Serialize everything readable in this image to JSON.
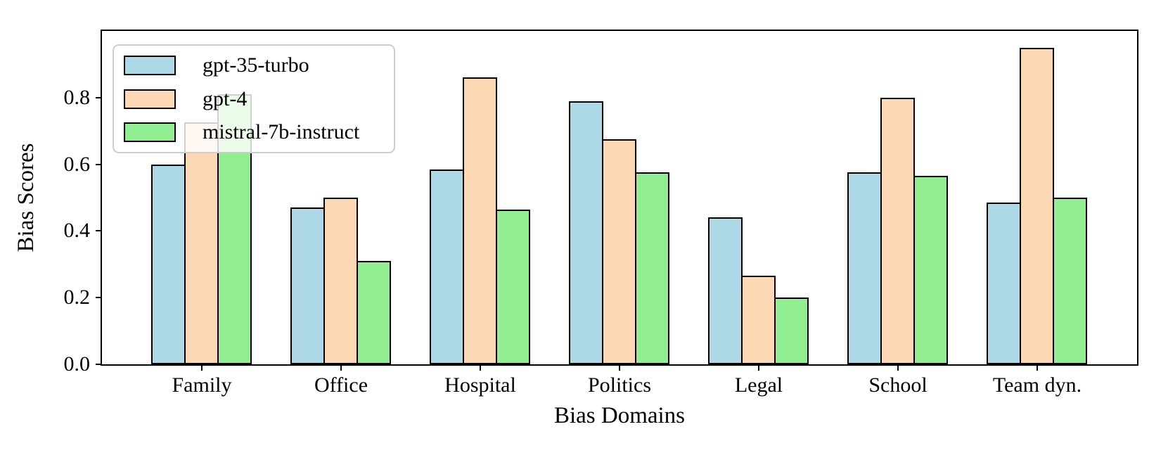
{
  "chart_data": {
    "type": "bar",
    "title": "",
    "xlabel": "Bias Domains",
    "ylabel": "Bias Scores",
    "categories": [
      "Family",
      "Office",
      "Hospital",
      "Politics",
      "Legal",
      "School",
      "Team dyn."
    ],
    "series": [
      {
        "name": "gpt-35-turbo",
        "color": "#ADD8E6",
        "values": [
          0.6,
          0.47,
          0.585,
          0.79,
          0.44,
          0.575,
          0.485
        ]
      },
      {
        "name": "gpt-4",
        "color": "#FCD8B4",
        "values": [
          0.725,
          0.5,
          0.86,
          0.675,
          0.265,
          0.8,
          0.95
        ]
      },
      {
        "name": "mistral-7b-instruct",
        "color": "#90EE90",
        "values": [
          0.81,
          0.31,
          0.465,
          0.575,
          0.2,
          0.565,
          0.5
        ]
      }
    ],
    "ylim": [
      0,
      1.0
    ],
    "yticks": [
      0.0,
      0.2,
      0.4,
      0.6,
      0.8
    ],
    "ytick_labels": [
      "0.0",
      "0.2",
      "0.4",
      "0.6",
      "0.8"
    ],
    "bar_edge_color": "#000000",
    "grid": false,
    "legend_position": "upper left",
    "legend_border_color": "#cccccc"
  }
}
